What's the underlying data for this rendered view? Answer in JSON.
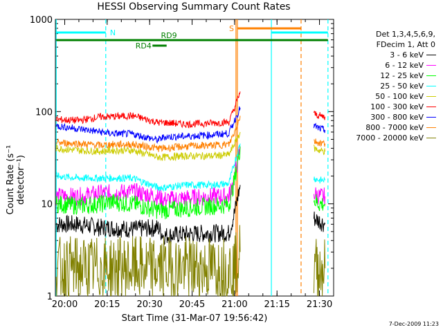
{
  "chart_data": {
    "type": "line",
    "title": "HESSI Observing Summary Count Rates",
    "xlabel": "Start Time (31-Mar-07 19:56:42)",
    "ylabel": "Count Rate (s⁻¹ detector⁻¹)",
    "yscale": "log",
    "ylim": [
      1,
      1000
    ],
    "y_ticks": [
      "1",
      "10",
      "100",
      "1000"
    ],
    "x_ticks": [
      "20:00",
      "20:15",
      "20:30",
      "20:45",
      "21:00",
      "21:15",
      "21:30"
    ],
    "legend_header": [
      "Det 1,3,4,5,6,9,",
      "FDecim 1, Att 0"
    ],
    "series": [
      {
        "name": "3 - 6 keV",
        "color": "#000000",
        "x": [
          "19:57",
          "20:05",
          "20:13",
          "20:16",
          "20:24",
          "20:33",
          "20:35",
          "20:43",
          "20:52",
          "20:58",
          "21:00",
          "21:02",
          "21:25",
          "21:28",
          "21:30",
          "21:32"
        ],
        "values": [
          6,
          6,
          5.5,
          5.5,
          5.3,
          5.5,
          4.5,
          4.7,
          4.8,
          4.8,
          8,
          16,
          null,
          7,
          6.5,
          6
        ]
      },
      {
        "name": "6 - 12 keV",
        "color": "#ff00ff",
        "x": [
          "19:57",
          "20:05",
          "20:13",
          "20:16",
          "20:24",
          "20:33",
          "20:35",
          "20:43",
          "20:52",
          "20:58",
          "21:00",
          "21:02",
          "21:25",
          "21:28",
          "21:30",
          "21:32"
        ],
        "values": [
          12,
          12,
          13,
          13,
          13.5,
          12,
          11,
          11.5,
          12,
          12,
          20,
          40,
          null,
          13,
          12,
          12
        ]
      },
      {
        "name": "12 - 25 keV",
        "color": "#00ff00",
        "x": [
          "19:57",
          "20:05",
          "20:13",
          "20:16",
          "20:24",
          "20:33",
          "20:35",
          "20:43",
          "20:52",
          "20:58",
          "21:00",
          "21:02",
          "21:25",
          "21:28",
          "21:30",
          "21:32"
        ],
        "values": [
          10,
          9.5,
          10,
          10.5,
          10,
          8.5,
          8.5,
          9,
          9.5,
          9.8,
          18,
          42,
          null,
          11,
          10,
          10
        ]
      },
      {
        "name": "25 - 50 keV",
        "color": "#00ffff",
        "x": [
          "19:57",
          "20:05",
          "20:13",
          "20:16",
          "20:24",
          "20:33",
          "20:35",
          "20:43",
          "20:52",
          "20:58",
          "21:00",
          "21:02",
          "21:25",
          "21:28",
          "21:30",
          "21:32"
        ],
        "values": [
          20,
          19,
          19,
          19,
          19,
          15,
          15,
          16,
          16,
          16.5,
          28,
          45,
          null,
          19,
          18,
          18
        ]
      },
      {
        "name": "50 - 100 keV",
        "color": "#cccc00",
        "x": [
          "19:57",
          "20:05",
          "20:13",
          "20:16",
          "20:24",
          "20:33",
          "20:35",
          "20:43",
          "20:52",
          "20:58",
          "21:00",
          "21:02",
          "21:25",
          "21:28",
          "21:30",
          "21:32"
        ],
        "values": [
          40,
          38,
          37,
          38,
          38,
          32,
          32,
          33,
          33,
          34,
          45,
          60,
          null,
          40,
          38,
          37
        ]
      },
      {
        "name": "100 - 300 keV",
        "color": "#ff0000",
        "x": [
          "19:57",
          "20:05",
          "20:13",
          "20:16",
          "20:24",
          "20:33",
          "20:35",
          "20:43",
          "20:52",
          "20:58",
          "21:00",
          "21:02",
          "21:25",
          "21:28",
          "21:30",
          "21:32"
        ],
        "values": [
          82,
          80,
          88,
          88,
          90,
          76,
          76,
          73,
          75,
          77,
          110,
          165,
          null,
          95,
          90,
          88
        ]
      },
      {
        "name": "300 - 800 keV",
        "color": "#0000ff",
        "x": [
          "19:57",
          "20:05",
          "20:13",
          "20:16",
          "20:24",
          "20:33",
          "20:35",
          "20:43",
          "20:52",
          "20:58",
          "21:00",
          "21:02",
          "21:25",
          "21:28",
          "21:30",
          "21:32"
        ],
        "values": [
          70,
          65,
          60,
          58,
          57,
          49,
          53,
          54,
          56,
          58,
          80,
          110,
          null,
          70,
          65,
          63
        ]
      },
      {
        "name": "800 - 7000 keV",
        "color": "#ff8000",
        "x": [
          "19:57",
          "20:05",
          "20:13",
          "20:16",
          "20:24",
          "20:33",
          "20:35",
          "20:43",
          "20:52",
          "20:58",
          "21:00",
          "21:02",
          "21:25",
          "21:28",
          "21:30",
          "21:32"
        ],
        "values": [
          46,
          45,
          43,
          44,
          44,
          40,
          40,
          42,
          43,
          44,
          60,
          90,
          null,
          48,
          46,
          45
        ]
      },
      {
        "name": "7000 - 20000 keV",
        "color": "#808000",
        "x": [
          "19:57",
          "20:05",
          "20:13",
          "20:16",
          "20:24",
          "20:33",
          "20:35",
          "20:43",
          "20:52",
          "20:58",
          "21:00",
          "21:02",
          "21:25",
          "21:28",
          "21:30",
          "21:32"
        ],
        "values": [
          2,
          2,
          2,
          2,
          2,
          2,
          2,
          2,
          2,
          2,
          2,
          3,
          null,
          2,
          2,
          2
        ]
      }
    ],
    "markers": {
      "N": "N",
      "S": "S",
      "RD4": "RD4",
      "RD9": "RD9"
    }
  },
  "footer": {
    "date": "7-Dec-2009 11:23"
  },
  "colors": {
    "axis": "#000000",
    "night_line": "#00ffff",
    "saa_line": "#ff8000",
    "decim_line": "#008000"
  }
}
